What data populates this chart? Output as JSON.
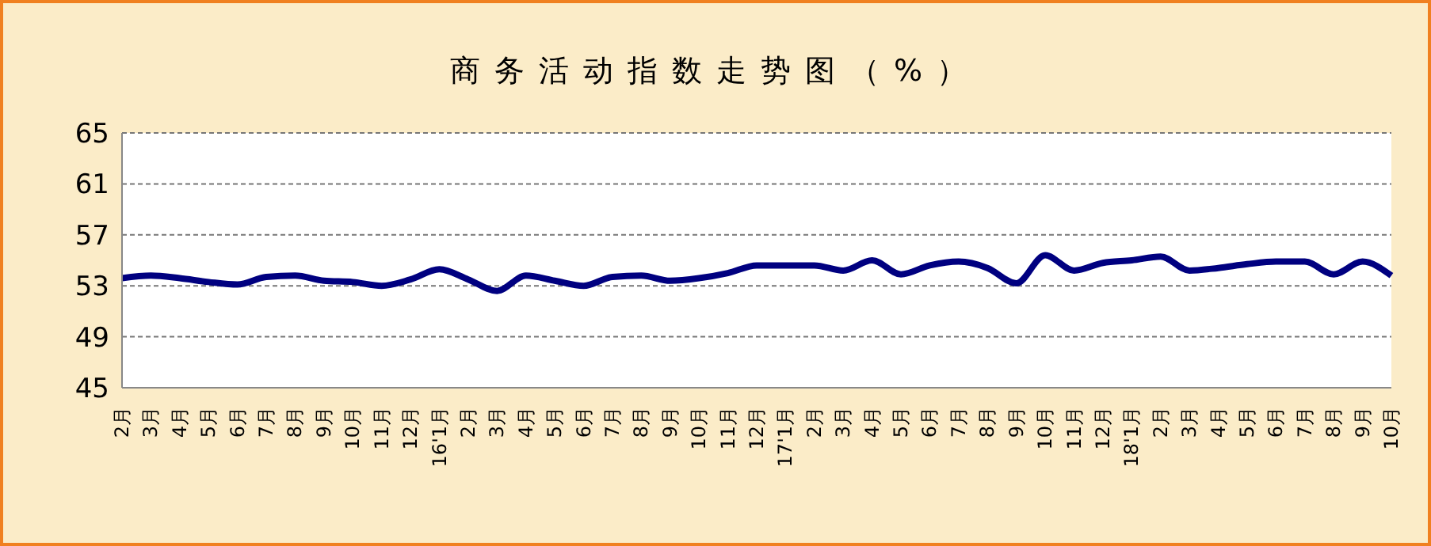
{
  "chart_data": {
    "type": "line",
    "title": "商务活动指数走势图（%）",
    "categories": [
      "2月",
      "3月",
      "4月",
      "5月",
      "6月",
      "7月",
      "8月",
      "9月",
      "10月",
      "11月",
      "12月",
      "16'1月",
      "2月",
      "3月",
      "4月",
      "5月",
      "6月",
      "7月",
      "8月",
      "9月",
      "10月",
      "11月",
      "12月",
      "17'1月",
      "2月",
      "3月",
      "4月",
      "5月",
      "6月",
      "7月",
      "8月",
      "9月",
      "10月",
      "11月",
      "12月",
      "18'1月",
      "2月",
      "3月",
      "4月",
      "5月",
      "6月",
      "7月",
      "8月",
      "9月",
      "10月"
    ],
    "series": [
      {
        "color": "#000080",
        "values": [
          53.6,
          53.8,
          53.6,
          53.3,
          53.1,
          53.7,
          53.8,
          53.4,
          53.3,
          53.0,
          53.5,
          54.3,
          53.5,
          52.6,
          53.8,
          53.4,
          53.0,
          53.7,
          53.8,
          53.4,
          53.6,
          54.0,
          54.6,
          54.6,
          54.6,
          54.2,
          55.0,
          53.9,
          54.6,
          54.9,
          54.4,
          53.2,
          55.4,
          54.2,
          54.8,
          55.0,
          55.3,
          54.2,
          54.4,
          54.7,
          54.9,
          54.9,
          53.9,
          54.9,
          53.8
        ]
      }
    ],
    "ylim": [
      45,
      65
    ],
    "yticks": [
      45,
      49,
      53,
      57,
      61,
      65
    ],
    "grid": "y",
    "marker": "none",
    "line_style": "solid"
  }
}
